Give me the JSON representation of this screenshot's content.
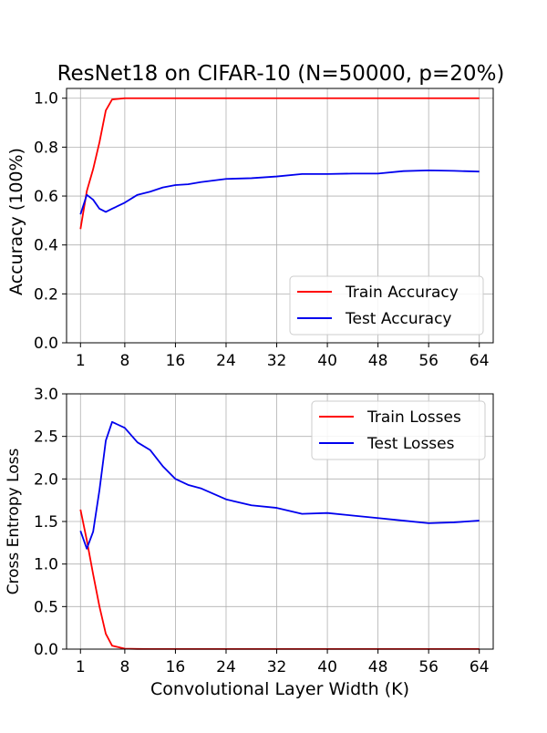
{
  "title": "ResNet18 on CIFAR-10 (N=50000, p=20%)",
  "chart_data": [
    {
      "type": "line",
      "title": "ResNet18 on CIFAR-10 (N=50000, p=20%)",
      "xlabel": "",
      "ylabel": "Accuracy (100%)",
      "xlim": [
        -1.2,
        66.2
      ],
      "ylim": [
        0.0,
        1.04
      ],
      "xticks": [
        1,
        8,
        16,
        24,
        32,
        40,
        48,
        56,
        64
      ],
      "yticks": [
        "0.0",
        "0.2",
        "0.4",
        "0.6",
        "0.8",
        "1.0"
      ],
      "grid": true,
      "legend_position": "bottom-right",
      "series": [
        {
          "name": "Train Accuracy",
          "color": "#ff0000",
          "x": [
            1,
            2,
            3,
            4,
            5,
            6,
            8,
            10,
            12,
            14,
            16,
            18,
            20,
            24,
            28,
            32,
            36,
            40,
            44,
            48,
            52,
            56,
            60,
            64
          ],
          "y": [
            0.465,
            0.62,
            0.71,
            0.82,
            0.95,
            0.995,
            1.0,
            1.0,
            1.0,
            1.0,
            1.0,
            1.0,
            1.0,
            1.0,
            1.0,
            1.0,
            1.0,
            1.0,
            1.0,
            1.0,
            1.0,
            1.0,
            1.0,
            1.0
          ]
        },
        {
          "name": "Test Accuracy",
          "color": "#0000ee",
          "x": [
            1,
            2,
            3,
            4,
            5,
            6,
            8,
            10,
            12,
            14,
            16,
            18,
            20,
            24,
            28,
            32,
            36,
            40,
            44,
            48,
            52,
            56,
            60,
            64
          ],
          "y": [
            0.525,
            0.605,
            0.585,
            0.548,
            0.535,
            0.548,
            0.573,
            0.605,
            0.618,
            0.635,
            0.645,
            0.648,
            0.657,
            0.67,
            0.673,
            0.68,
            0.69,
            0.69,
            0.692,
            0.692,
            0.702,
            0.705,
            0.703,
            0.7
          ]
        }
      ]
    },
    {
      "type": "line",
      "title": "",
      "xlabel": "Convolutional Layer Width (K)",
      "ylabel": "Cross Entropy Loss",
      "xlim": [
        -1.2,
        66.2
      ],
      "ylim": [
        0.0,
        3.0
      ],
      "xticks": [
        1,
        8,
        16,
        24,
        32,
        40,
        48,
        56,
        64
      ],
      "yticks": [
        "0.0",
        "0.5",
        "1.0",
        "1.5",
        "2.0",
        "2.5",
        "3.0"
      ],
      "grid": true,
      "legend_position": "top-right",
      "series": [
        {
          "name": "Train Losses",
          "color": "#ff0000",
          "x": [
            1,
            2,
            3,
            4,
            5,
            6,
            8,
            10,
            12,
            14,
            16,
            18,
            20,
            24,
            28,
            32,
            36,
            40,
            44,
            48,
            52,
            56,
            60,
            64
          ],
          "y": [
            1.64,
            1.28,
            0.88,
            0.5,
            0.18,
            0.04,
            0.005,
            0.002,
            0.001,
            0.001,
            0.001,
            0.001,
            0.001,
            0.001,
            0.001,
            0.001,
            0.001,
            0.001,
            0.001,
            0.001,
            0.001,
            0.001,
            0.001,
            0.001
          ]
        },
        {
          "name": "Test Losses",
          "color": "#0000ee",
          "x": [
            1,
            2,
            3,
            4,
            5,
            6,
            8,
            10,
            12,
            14,
            16,
            18,
            20,
            24,
            28,
            32,
            36,
            40,
            44,
            48,
            52,
            56,
            60,
            64
          ],
          "y": [
            1.39,
            1.18,
            1.38,
            1.87,
            2.45,
            2.67,
            2.6,
            2.43,
            2.34,
            2.15,
            2.0,
            1.93,
            1.89,
            1.76,
            1.69,
            1.66,
            1.59,
            1.6,
            1.57,
            1.54,
            1.51,
            1.48,
            1.49,
            1.51
          ]
        }
      ]
    }
  ]
}
